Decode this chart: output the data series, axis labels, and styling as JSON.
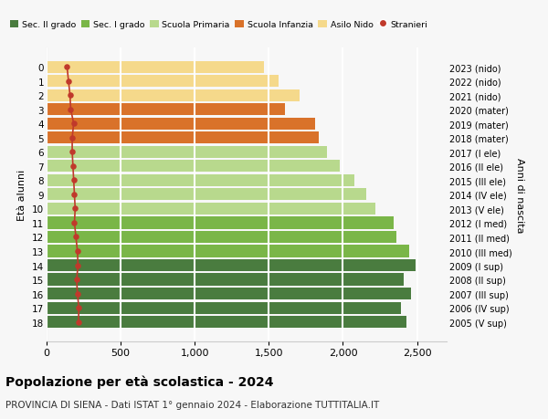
{
  "ages": [
    18,
    17,
    16,
    15,
    14,
    13,
    12,
    11,
    10,
    9,
    8,
    7,
    6,
    5,
    4,
    3,
    2,
    1,
    0
  ],
  "right_labels": [
    "2005 (V sup)",
    "2006 (IV sup)",
    "2007 (III sup)",
    "2008 (II sup)",
    "2009 (I sup)",
    "2010 (III med)",
    "2011 (II med)",
    "2012 (I med)",
    "2013 (V ele)",
    "2014 (IV ele)",
    "2015 (III ele)",
    "2016 (II ele)",
    "2017 (I ele)",
    "2018 (mater)",
    "2019 (mater)",
    "2020 (mater)",
    "2021 (nido)",
    "2022 (nido)",
    "2023 (nido)"
  ],
  "bar_values": [
    2430,
    2390,
    2460,
    2410,
    2490,
    2450,
    2360,
    2340,
    2220,
    2160,
    2080,
    1980,
    1890,
    1840,
    1810,
    1610,
    1710,
    1565,
    1470
  ],
  "stranieri_values": [
    215,
    218,
    208,
    203,
    212,
    208,
    198,
    188,
    193,
    188,
    183,
    178,
    173,
    173,
    183,
    163,
    158,
    148,
    138
  ],
  "bar_colors": [
    "#4a7c3f",
    "#4a7c3f",
    "#4a7c3f",
    "#4a7c3f",
    "#4a7c3f",
    "#7ab648",
    "#7ab648",
    "#7ab648",
    "#b8d98d",
    "#b8d98d",
    "#b8d98d",
    "#b8d98d",
    "#b8d98d",
    "#d9722a",
    "#d9722a",
    "#d9722a",
    "#f5d98b",
    "#f5d98b",
    "#f5d98b"
  ],
  "legend_labels": [
    "Sec. II grado",
    "Sec. I grado",
    "Scuola Primaria",
    "Scuola Infanzia",
    "Asilo Nido",
    "Stranieri"
  ],
  "legend_colors": [
    "#4a7c3f",
    "#7ab648",
    "#b8d98d",
    "#d9722a",
    "#f5d98b",
    "#c0392b"
  ],
  "stranieri_color": "#c0392b",
  "title": "Popolazione per età scolastica - 2024",
  "subtitle": "PROVINCIA DI SIENA - Dati ISTAT 1° gennaio 2024 - Elaborazione TUTTITALIA.IT",
  "ylabel_left": "Età alunni",
  "ylabel_right": "Anni di nascita",
  "xlim": [
    0,
    2700
  ],
  "xticks": [
    0,
    500,
    1000,
    1500,
    2000,
    2500
  ],
  "xtick_labels": [
    "0",
    "500",
    "1,000",
    "1,500",
    "2,000",
    "2,500"
  ],
  "bg_color": "#f7f7f7",
  "bar_height": 0.85
}
